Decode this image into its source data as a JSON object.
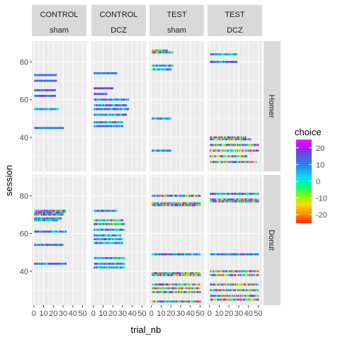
{
  "chart_data": {
    "type": "scatter",
    "xlabel": "trial_nb",
    "ylabel": "session",
    "xlim": [
      -2,
      54
    ],
    "ylim": [
      22,
      91
    ],
    "x_ticks": [
      0,
      10,
      20,
      30,
      40,
      50
    ],
    "x_tick_labels": [
      "0",
      "10",
      "20",
      "30",
      "40",
      "50"
    ],
    "y_ticks": [
      40,
      60,
      80
    ],
    "y_tick_labels": [
      "40",
      "60",
      "80"
    ],
    "columns": [
      {
        "group": "CONTROL",
        "treatment": "sham"
      },
      {
        "group": "CONTROL",
        "treatment": "DCZ"
      },
      {
        "group": "TEST",
        "treatment": "sham"
      },
      {
        "group": "TEST",
        "treatment": "DCZ"
      }
    ],
    "rows": [
      "Homer",
      "Donut"
    ],
    "legend": {
      "title": "choice",
      "ticks": [
        20,
        10,
        0,
        -10,
        -20
      ],
      "range": [
        -25,
        25
      ],
      "palette": [
        "#ff2a00",
        "#ff8c00",
        "#ffd700",
        "#7fff00",
        "#00ff7f",
        "#00e5e5",
        "#1e90ff",
        "#4169e1",
        "#8a2be2",
        "#ff00ff"
      ]
    },
    "panels": [
      {
        "row": "Homer",
        "col": 0,
        "sessions": [
          {
            "session": 73,
            "x_max": 23,
            "min": 5,
            "max": 20
          },
          {
            "session": 70,
            "x_max": 23,
            "min": 5,
            "max": 20
          },
          {
            "session": 65,
            "x_max": 22,
            "min": 5,
            "max": 20
          },
          {
            "session": 62,
            "x_max": 22,
            "min": 5,
            "max": 20
          },
          {
            "session": 55,
            "x_max": 25,
            "min": 0,
            "max": 15
          },
          {
            "session": 45,
            "x_max": 30,
            "min": 5,
            "max": 15
          }
        ]
      },
      {
        "row": "Homer",
        "col": 1,
        "sessions": [
          {
            "session": 74,
            "x_max": 24,
            "min": 5,
            "max": 15
          },
          {
            "session": 66,
            "x_max": 20,
            "min": 5,
            "max": 20
          },
          {
            "session": 63,
            "x_max": 14,
            "min": 5,
            "max": 20
          },
          {
            "session": 60,
            "x_max": 36,
            "min": 0,
            "max": 20
          },
          {
            "session": 57,
            "x_max": 34,
            "min": 0,
            "max": 20
          },
          {
            "session": 55,
            "x_max": 36,
            "min": 0,
            "max": 20
          },
          {
            "session": 52,
            "x_max": 34,
            "min": 0,
            "max": 20
          },
          {
            "session": 48,
            "x_max": 30,
            "min": 0,
            "max": 20
          },
          {
            "session": 46,
            "x_max": 30,
            "min": 0,
            "max": 20
          }
        ]
      },
      {
        "row": "Homer",
        "col": 2,
        "sessions": [
          {
            "session": 86,
            "x_max": 16,
            "min": -20,
            "max": 25
          },
          {
            "session": 85,
            "x_max": 22,
            "min": -20,
            "max": 25
          },
          {
            "session": 78,
            "x_max": 22,
            "min": -5,
            "max": 20
          },
          {
            "session": 76,
            "x_max": 20,
            "min": -5,
            "max": 20
          },
          {
            "session": 50,
            "x_max": 20,
            "min": 0,
            "max": 15
          },
          {
            "session": 33,
            "x_max": 20,
            "min": -5,
            "max": 15
          }
        ]
      },
      {
        "row": "Homer",
        "col": 3,
        "sessions": [
          {
            "session": 84,
            "x_max": 28,
            "min": 0,
            "max": 20
          },
          {
            "session": 80,
            "x_max": 28,
            "min": 0,
            "max": 20
          },
          {
            "session": 40,
            "x_max": 37,
            "min": -15,
            "max": 25
          },
          {
            "session": 39,
            "x_max": 42,
            "min": -15,
            "max": 25
          },
          {
            "session": 36,
            "x_max": 50,
            "min": -20,
            "max": 25
          },
          {
            "session": 33,
            "x_max": 50,
            "min": -20,
            "max": 25
          },
          {
            "session": 30,
            "x_max": 38,
            "min": -20,
            "max": 20
          },
          {
            "session": 27,
            "x_max": 48,
            "min": -20,
            "max": 20
          }
        ]
      },
      {
        "row": "Donut",
        "col": 0,
        "sessions": [
          {
            "session": 72,
            "x_max": 32,
            "min": -10,
            "max": 25
          },
          {
            "session": 71,
            "x_max": 32,
            "min": -10,
            "max": 25
          },
          {
            "session": 70,
            "x_max": 30,
            "min": -10,
            "max": 25
          },
          {
            "session": 68,
            "x_max": 28,
            "min": -5,
            "max": 20
          },
          {
            "session": 67,
            "x_max": 24,
            "min": -5,
            "max": 20
          },
          {
            "session": 61,
            "x_max": 33,
            "min": 0,
            "max": 20
          },
          {
            "session": 54,
            "x_max": 30,
            "min": 0,
            "max": 20
          },
          {
            "session": 44,
            "x_max": 33,
            "min": 0,
            "max": 20
          }
        ]
      },
      {
        "row": "Donut",
        "col": 1,
        "sessions": [
          {
            "session": 72,
            "x_max": 24,
            "min": 0,
            "max": 20
          },
          {
            "session": 67,
            "x_max": 30,
            "min": -10,
            "max": 20
          },
          {
            "session": 65,
            "x_max": 32,
            "min": -10,
            "max": 20
          },
          {
            "session": 62,
            "x_max": 32,
            "min": -5,
            "max": 20
          },
          {
            "session": 59,
            "x_max": 28,
            "min": -5,
            "max": 20
          },
          {
            "session": 57,
            "x_max": 30,
            "min": -5,
            "max": 20
          },
          {
            "session": 55,
            "x_max": 30,
            "min": -5,
            "max": 20
          },
          {
            "session": 47,
            "x_max": 32,
            "min": -5,
            "max": 20
          },
          {
            "session": 44,
            "x_max": 32,
            "min": -5,
            "max": 20
          },
          {
            "session": 42,
            "x_max": 32,
            "min": -5,
            "max": 20
          }
        ]
      },
      {
        "row": "Donut",
        "col": 2,
        "sessions": [
          {
            "session": 80,
            "x_max": 50,
            "min": -20,
            "max": 25
          },
          {
            "session": 76,
            "x_max": 50,
            "min": -20,
            "max": 25
          },
          {
            "session": 75,
            "x_max": 50,
            "min": -20,
            "max": 25
          },
          {
            "session": 49,
            "x_max": 50,
            "min": 0,
            "max": 20
          },
          {
            "session": 39,
            "x_max": 50,
            "min": -20,
            "max": 25
          },
          {
            "session": 38,
            "x_max": 50,
            "min": -20,
            "max": 25
          },
          {
            "session": 33,
            "x_max": 50,
            "min": -20,
            "max": 25
          },
          {
            "session": 31,
            "x_max": 50,
            "min": -20,
            "max": 25
          },
          {
            "session": 29,
            "x_max": 50,
            "min": -20,
            "max": 25
          },
          {
            "session": 24,
            "x_max": 50,
            "min": -20,
            "max": 25
          }
        ]
      },
      {
        "row": "Donut",
        "col": 3,
        "sessions": [
          {
            "session": 81,
            "x_max": 50,
            "min": -5,
            "max": 20
          },
          {
            "session": 78,
            "x_max": 50,
            "min": -20,
            "max": 25
          },
          {
            "session": 77,
            "x_max": 50,
            "min": -20,
            "max": 25
          },
          {
            "session": 49,
            "x_max": 50,
            "min": 0,
            "max": 20
          },
          {
            "session": 40,
            "x_max": 50,
            "min": -20,
            "max": 25
          },
          {
            "session": 38,
            "x_max": 50,
            "min": -20,
            "max": 25
          },
          {
            "session": 33,
            "x_max": 50,
            "min": -20,
            "max": 25
          },
          {
            "session": 30,
            "x_max": 50,
            "min": -20,
            "max": 25
          },
          {
            "session": 27,
            "x_max": 50,
            "min": -20,
            "max": 25
          },
          {
            "session": 25,
            "x_max": 50,
            "min": -20,
            "max": 25
          }
        ]
      }
    ]
  }
}
